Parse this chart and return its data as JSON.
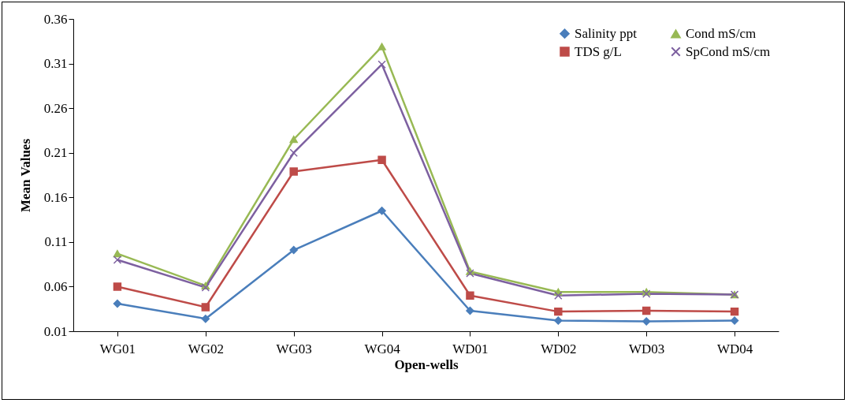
{
  "chart_data": {
    "type": "line",
    "xlabel": "Open-wells",
    "ylabel": "Mean Values",
    "categories": [
      "WG01",
      "WG02",
      "WG03",
      "WG04",
      "WD01",
      "WD02",
      "WD03",
      "WD04"
    ],
    "series": [
      {
        "name": "Salinity ppt",
        "color": "#4a7ebb",
        "marker": "diamond",
        "values": [
          0.041,
          0.024,
          0.101,
          0.145,
          0.033,
          0.022,
          0.021,
          0.022
        ]
      },
      {
        "name": "TDS g/L",
        "color": "#be4b48",
        "marker": "square",
        "values": [
          0.06,
          0.037,
          0.189,
          0.202,
          0.05,
          0.032,
          0.033,
          0.032
        ]
      },
      {
        "name": "Cond mS/cm",
        "color": "#98b954",
        "marker": "triangle",
        "values": [
          0.097,
          0.061,
          0.225,
          0.329,
          0.077,
          0.054,
          0.054,
          0.051
        ]
      },
      {
        "name": "SpCond mS/cm",
        "color": "#7d60a0",
        "marker": "cross",
        "values": [
          0.09,
          0.059,
          0.21,
          0.309,
          0.075,
          0.05,
          0.052,
          0.051
        ]
      }
    ],
    "ylim": [
      0.01,
      0.36
    ],
    "yticks": [
      0.01,
      0.06,
      0.11,
      0.16,
      0.21,
      0.26,
      0.31,
      0.36
    ],
    "grid": false,
    "legend": "top right",
    "line_style": "solid"
  }
}
